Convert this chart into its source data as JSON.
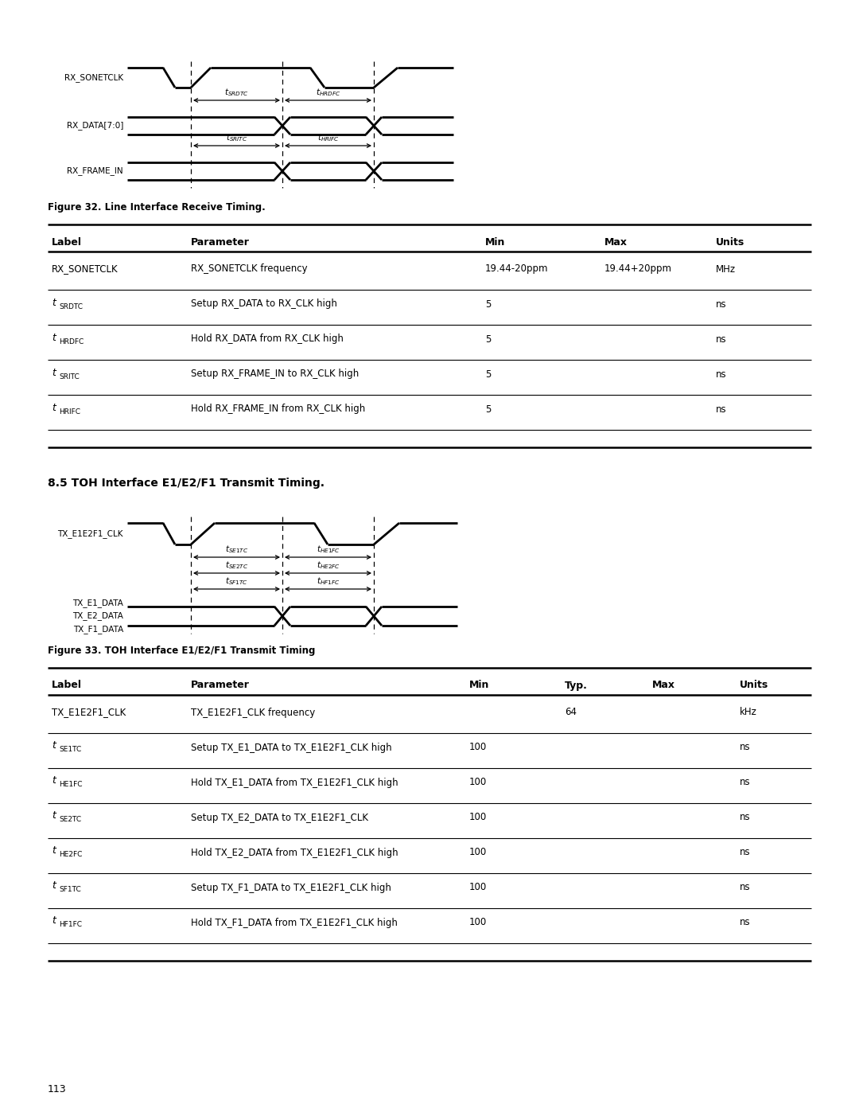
{
  "bg_color": "#ffffff",
  "fig_width": 10.8,
  "fig_height": 13.97,
  "page_number": "113",
  "section_title": "8.5 TOH Interface E1/E2/F1 Transmit Timing.",
  "fig32_caption": "Figure 32. Line Interface Receive Timing.",
  "fig33_caption": "Figure 33. TOH Interface E1/E2/F1 Transmit Timing",
  "table1_headers": [
    "Label",
    "Parameter",
    "Min",
    "Max",
    "Units"
  ],
  "table1_label_subs": [
    "",
    "SRDTC",
    "HRDFC",
    "SRITC",
    "HRIFC"
  ],
  "table1_rows": [
    [
      "RX_SONETCLK",
      "RX_SONETCLK frequency",
      "19.44-20ppm",
      "19.44+20ppm",
      "MHz"
    ],
    [
      "",
      "Setup RX_DATA to RX_CLK high",
      "5",
      "",
      "ns"
    ],
    [
      "",
      "Hold RX_DATA from RX_CLK high",
      "5",
      "",
      "ns"
    ],
    [
      "",
      "Setup RX_FRAME_IN to RX_CLK high",
      "5",
      "",
      "ns"
    ],
    [
      "",
      "Hold RX_FRAME_IN from RX_CLK high",
      "5",
      "",
      "ns"
    ]
  ],
  "table2_headers": [
    "Label",
    "Parameter",
    "Min",
    "Typ.",
    "Max",
    "Units"
  ],
  "table2_label_subs": [
    "",
    "SE1TC",
    "HE1FC",
    "SE2TC",
    "HE2FC",
    "SF1TC",
    "HF1FC"
  ],
  "table2_rows": [
    [
      "TX_E1E2F1_CLK",
      "TX_E1E2F1_CLK frequency",
      "",
      "64",
      "",
      "kHz"
    ],
    [
      "",
      "Setup TX_E1_DATA to TX_E1E2F1_CLK high",
      "100",
      "",
      "",
      "ns"
    ],
    [
      "",
      "Hold TX_E1_DATA from TX_E1E2F1_CLK high",
      "100",
      "",
      "",
      "ns"
    ],
    [
      "",
      "Setup TX_E2_DATA to TX_E1E2F1_CLK",
      "100",
      "",
      "",
      "ns"
    ],
    [
      "",
      "Hold TX_E2_DATA from TX_E1E2F1_CLK high",
      "100",
      "",
      "",
      "ns"
    ],
    [
      "",
      "Setup TX_F1_DATA to TX_E1E2F1_CLK high",
      "100",
      "",
      "",
      "ns"
    ],
    [
      "",
      "Hold TX_F1_DATA from TX_E1E2F1_CLK high",
      "100",
      "",
      "",
      "ns"
    ]
  ]
}
